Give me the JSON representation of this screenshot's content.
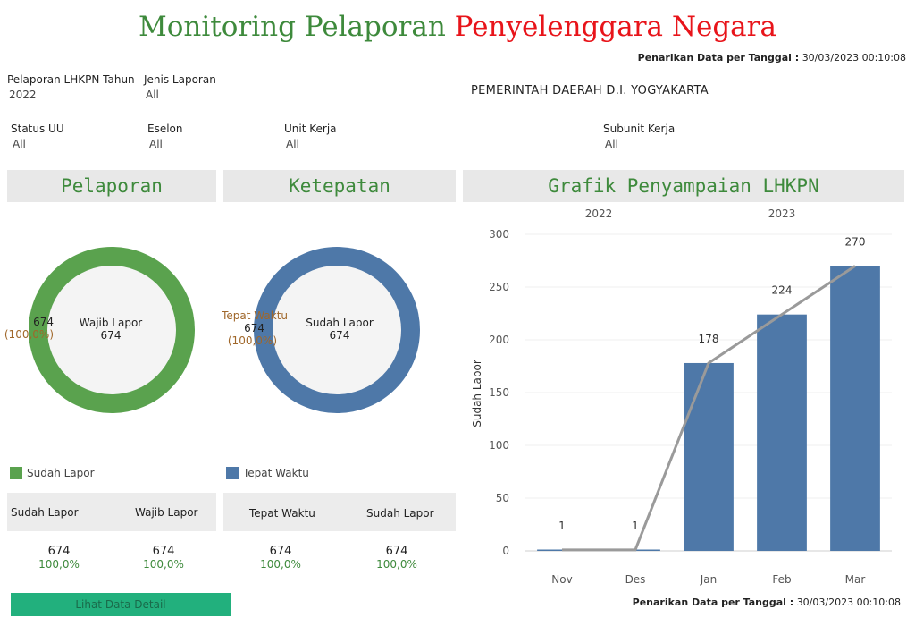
{
  "header": {
    "title_green": "Monitoring Pelaporan",
    "title_red": "Penyelenggara Negara",
    "stamp_label": "Penarikan Data per Tanggal :",
    "stamp_value": "30/03/2023 00:10:08"
  },
  "filters": {
    "tahun": {
      "label": "Pelaporan LHKPN Tahun",
      "value": "2022"
    },
    "jenis": {
      "label": "Jenis Laporan",
      "value": "All"
    },
    "instansi": "PEMERINTAH DAERAH D.I. YOGYAKARTA",
    "status_uu": {
      "label": "Status UU",
      "value": "All"
    },
    "eselon": {
      "label": "Eselon",
      "value": "All"
    },
    "unit_kerja": {
      "label": "Unit Kerja",
      "value": "All"
    },
    "subunit_kerja": {
      "label": "Subunit Kerja",
      "value": "All"
    }
  },
  "pelaporan": {
    "heading": "Pelaporan",
    "side_value": "674",
    "side_pct": "(100,0%)",
    "center_label": "Wajib Lapor",
    "center_value": "674",
    "fraction": 1.0,
    "color": "#5aa24e",
    "legend": "Sudah Lapor",
    "sum_col1": "Sudah Lapor",
    "sum_col2": "Wajib Lapor",
    "sum_val1": "674",
    "sum_pct1": "100,0%",
    "sum_val2": "674",
    "sum_pct2": "100,0%"
  },
  "ketepatan": {
    "heading": "Ketepatan",
    "side_label": "Tepat Waktu",
    "side_value": "674",
    "side_pct": "(100,0%)",
    "center_label": "Sudah Lapor",
    "center_value": "674",
    "fraction": 1.0,
    "color": "#4e78a8",
    "legend": "Tepat Waktu",
    "sum_col1": "Tepat Waktu",
    "sum_col2": "Sudah Lapor",
    "sum_val1": "674",
    "sum_pct1": "100,0%",
    "sum_val2": "674",
    "sum_pct2": "100,0%"
  },
  "grafik": {
    "heading": "Grafik Penyampaian LHKPN"
  },
  "detail_button": "Lihat Data Detail",
  "footer": {
    "stamp_label": "Penarikan Data per Tanggal :",
    "stamp_value": "30/03/2023 00:10:08"
  },
  "chart_data": {
    "type": "bar",
    "categories": [
      "Nov",
      "Des",
      "Jan",
      "Feb",
      "Mar"
    ],
    "groups": [
      {
        "label": "2022",
        "categories": [
          "Nov",
          "Des"
        ]
      },
      {
        "label": "2023",
        "categories": [
          "Jan",
          "Feb",
          "Mar"
        ]
      }
    ],
    "values": [
      1,
      1,
      178,
      224,
      270
    ],
    "data_labels": [
      "1",
      "1",
      "178",
      "224",
      "270"
    ],
    "line_values": [
      1,
      1,
      178,
      224,
      270
    ],
    "ylabel": "Sudah Lapor",
    "ylim": [
      0,
      300
    ],
    "yticks": [
      0,
      50,
      100,
      150,
      200,
      250,
      300
    ],
    "bar_color": "#4e78a8",
    "line_color": "#9a9a9a",
    "grid": true
  }
}
